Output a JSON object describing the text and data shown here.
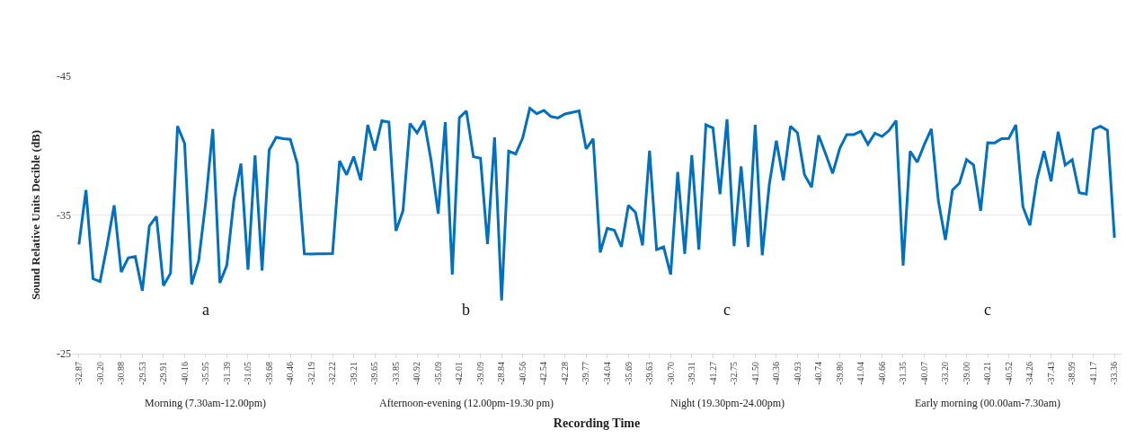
{
  "chart_data": {
    "type": "line",
    "xlabel": "Recording Time",
    "ylabel": "Sound Relative Units Decible (dB)",
    "categories": [
      "-32.87",
      null,
      null,
      "-30.20",
      null,
      null,
      "-30.88",
      null,
      null,
      "-29.53",
      null,
      null,
      "-29.91",
      null,
      null,
      "-40.16",
      null,
      null,
      "-35.95",
      null,
      null,
      "-31.39",
      null,
      null,
      "-31.05",
      null,
      null,
      "-39.68",
      null,
      null,
      "-40.46",
      null,
      null,
      "-32.19",
      null,
      null,
      "-32.22",
      null,
      null,
      "-39.21",
      null,
      null,
      "-39.65",
      null,
      null,
      "-33.85",
      null,
      null,
      "-40.92",
      null,
      null,
      "-35.09",
      null,
      null,
      "-42.01",
      null,
      null,
      "-39.09",
      null,
      null,
      "-28.84",
      null,
      null,
      "-40.56",
      null,
      null,
      "-42.54",
      null,
      null,
      "-42.28",
      null,
      null,
      "-39.77",
      null,
      null,
      "-34.04",
      null,
      null,
      "-35.69",
      null,
      null,
      "-39.63",
      null,
      null,
      "-30.70",
      null,
      null,
      "-39.31",
      null,
      null,
      "-41.27",
      null,
      null,
      "-32.75",
      null,
      null,
      "-41.50",
      null,
      null,
      "-40.36",
      null,
      null,
      "-40.93",
      null,
      null,
      "-40.74",
      null,
      null,
      "-39.80",
      null,
      null,
      "-41.04",
      null,
      null,
      "-40.66",
      null,
      null,
      "-31.35",
      null,
      null,
      "-40.07",
      null,
      null,
      "-33.20",
      null,
      null,
      "-39.00",
      null,
      null,
      "-40.21",
      null,
      null,
      "-40.52",
      null,
      null,
      "-34.26",
      null,
      null,
      "-37.43",
      null,
      null,
      "-38.99",
      null,
      null,
      "-41.17",
      null,
      null,
      "-33.36"
    ],
    "series": [
      {
        "color": "#0070c0",
        "values": [
          -32.87,
          -36.8,
          -30.4,
          -30.2,
          -32.8,
          -35.7,
          -30.88,
          -31.9,
          -32.0,
          -29.53,
          -34.2,
          -34.9,
          -29.91,
          -30.8,
          -41.4,
          -40.16,
          -30.0,
          -31.7,
          -35.95,
          -41.2,
          -30.1,
          -31.39,
          -36.1,
          -38.7,
          -31.05,
          -39.3,
          -31.0,
          -39.68,
          -40.6,
          -40.5,
          -40.46,
          -38.7,
          -32.2,
          -32.19,
          -32.2,
          -32.2,
          -32.22,
          -38.9,
          -37.9,
          -39.21,
          -37.5,
          -41.5,
          -39.65,
          -41.8,
          -41.7,
          -33.85,
          -35.3,
          -41.6,
          -40.92,
          -41.8,
          -38.9,
          -35.09,
          -41.7,
          -30.7,
          -42.01,
          -42.5,
          -39.2,
          -39.09,
          -32.9,
          -40.6,
          -28.84,
          -39.6,
          -39.4,
          -40.56,
          -42.7,
          -42.3,
          -42.54,
          -42.1,
          -42.0,
          -42.28,
          -42.4,
          -42.5,
          -39.77,
          -40.5,
          -32.3,
          -34.04,
          -33.9,
          -32.7,
          -35.69,
          -35.2,
          -32.8,
          -39.63,
          -32.5,
          -32.7,
          -30.7,
          -38.1,
          -32.2,
          -39.31,
          -32.5,
          -41.5,
          -41.27,
          -36.5,
          -41.9,
          -32.75,
          -38.5,
          -32.7,
          -41.5,
          -32.1,
          -37.2,
          -40.36,
          -37.5,
          -41.4,
          -40.93,
          -37.9,
          -37.0,
          -40.74,
          -39.4,
          -38.0,
          -39.8,
          -40.8,
          -40.8,
          -41.04,
          -40.1,
          -40.9,
          -40.66,
          -41.1,
          -41.8,
          -31.35,
          -39.6,
          -38.8,
          -40.07,
          -41.2,
          -36.0,
          -33.2,
          -36.8,
          -37.3,
          -39.0,
          -38.6,
          -35.3,
          -40.21,
          -40.2,
          -40.5,
          -40.52,
          -41.5,
          -35.6,
          -34.26,
          -37.6,
          -39.6,
          -37.43,
          -41.0,
          -38.6,
          -38.99,
          -36.6,
          -36.5,
          -41.17,
          -41.4,
          -41.1,
          -33.36
        ]
      }
    ],
    "ylim": [
      -25,
      -45
    ],
    "yticks": [
      -45,
      -35,
      -25
    ],
    "grid": "y",
    "annotations": [
      "Morning (7.30am-12.00pm)",
      "Afternoon-evening (12.00pm-19.30 pm)",
      "Night (19.30pm-24.00pm)",
      "Early morning (00.00am-7.30am)",
      "a",
      "b",
      "c",
      "c"
    ]
  }
}
